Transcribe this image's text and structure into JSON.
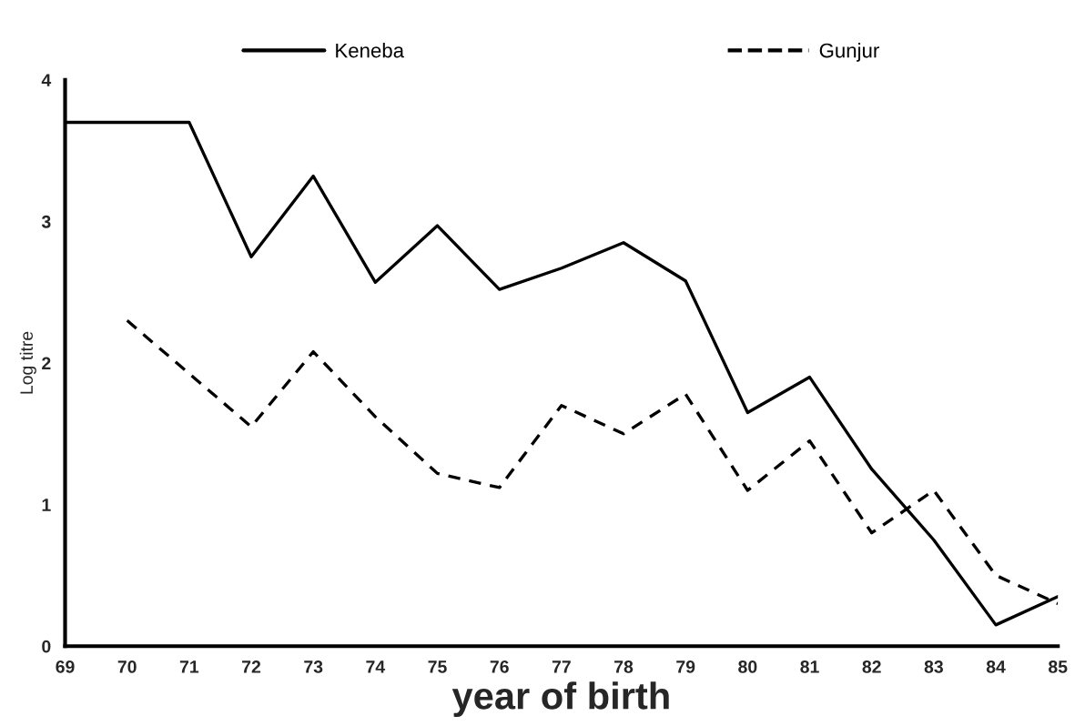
{
  "chart_data": {
    "type": "line",
    "xlabel": "year of birth",
    "ylabel": "Log titre",
    "xlim": [
      69,
      85
    ],
    "xticks": [
      69,
      70,
      71,
      72,
      73,
      74,
      75,
      76,
      77,
      78,
      79,
      80,
      81,
      82,
      83,
      84,
      85
    ],
    "ylim": [
      0,
      4
    ],
    "yticks": [
      0,
      1,
      2,
      3,
      4
    ],
    "grid": false,
    "legend": "top",
    "marker": "none",
    "series": [
      {
        "name": "Keneba",
        "color": "#000000",
        "line_style": "solid",
        "x": [
          69,
          71,
          72,
          73,
          74,
          75,
          76,
          77,
          78,
          79,
          80,
          81,
          82,
          83,
          84,
          85
        ],
        "values": [
          3.7,
          3.7,
          2.75,
          3.32,
          2.57,
          2.97,
          2.52,
          2.67,
          2.85,
          2.58,
          1.65,
          1.9,
          1.25,
          0.75,
          0.15,
          0.35
        ]
      },
      {
        "name": "Gunjur",
        "color": "#000000",
        "line_style": "dashed",
        "x": [
          70,
          72,
          73,
          74,
          75,
          76,
          77,
          78,
          79,
          80,
          81,
          82,
          83,
          84,
          85
        ],
        "values": [
          2.3,
          1.55,
          2.08,
          1.62,
          1.22,
          1.12,
          1.7,
          1.5,
          1.78,
          1.1,
          1.45,
          0.8,
          1.1,
          0.5,
          0.3
        ]
      }
    ]
  }
}
